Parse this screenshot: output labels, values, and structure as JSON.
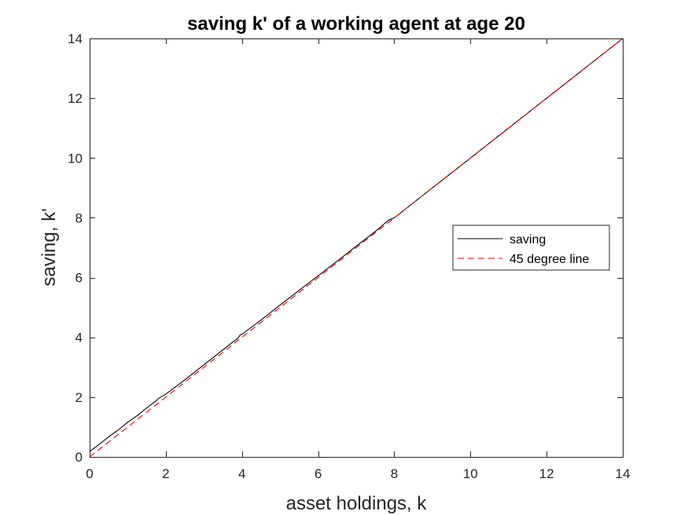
{
  "chart_data": {
    "type": "line",
    "title": "saving k' of a working agent at age 20",
    "xlabel": "asset holdings, k",
    "ylabel": "saving, k'",
    "xlim": [
      0,
      14
    ],
    "ylim": [
      0,
      14
    ],
    "xticks": [
      "0",
      "2",
      "4",
      "6",
      "8",
      "10",
      "12",
      "14"
    ],
    "yticks": [
      "0",
      "2",
      "4",
      "6",
      "8",
      "10",
      "12",
      "14"
    ],
    "grid": false,
    "legend_position": "right",
    "series": [
      {
        "name": "saving",
        "color": "#000000",
        "style": "solid",
        "x": [
          0,
          0.25,
          0.5,
          0.75,
          1.0,
          1.25,
          1.5,
          1.75,
          1.8,
          2.0,
          2.5,
          3.0,
          3.5,
          3.9,
          3.95,
          4.0,
          4.5,
          5.0,
          5.5,
          6.0,
          6.5,
          7.0,
          7.5,
          7.85,
          8.0,
          9,
          10,
          11,
          12,
          13,
          14
        ],
        "y": [
          0.18,
          0.42,
          0.67,
          0.9,
          1.16,
          1.38,
          1.64,
          1.88,
          1.95,
          2.1,
          2.58,
          3.08,
          3.58,
          3.98,
          4.08,
          4.1,
          4.58,
          5.08,
          5.57,
          6.06,
          6.55,
          7.05,
          7.54,
          7.92,
          8.0,
          9,
          10,
          11,
          12,
          13,
          14
        ]
      },
      {
        "name": "45 degree line",
        "color": "#ff0000",
        "style": "dashed",
        "x": [
          0,
          14
        ],
        "y": [
          0,
          14
        ]
      }
    ]
  }
}
